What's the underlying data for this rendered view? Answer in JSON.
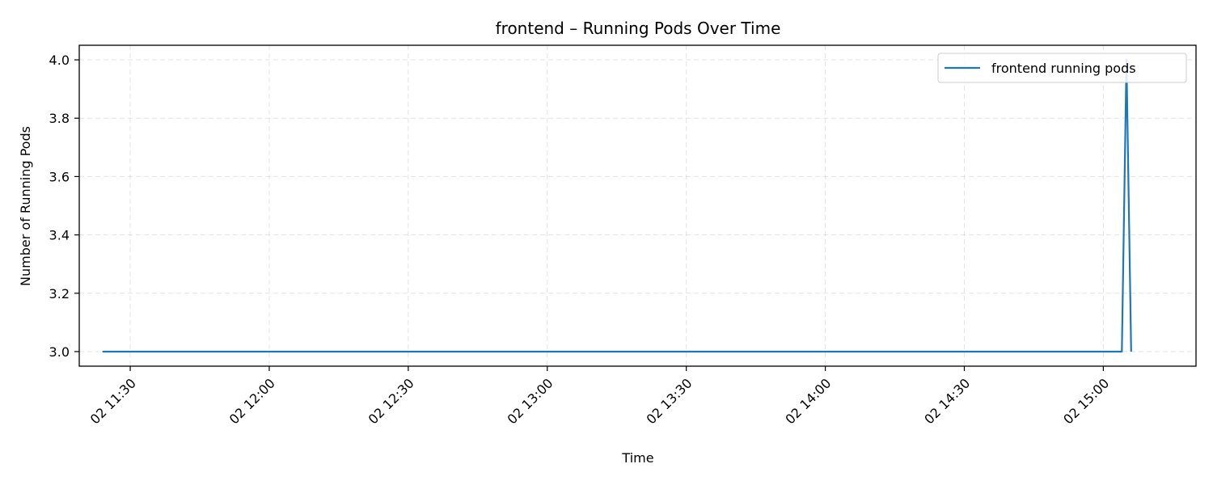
{
  "chart_data": {
    "type": "line",
    "title": "frontend – Running Pods Over Time",
    "xlabel": "Time",
    "ylabel": "Number of Running Pods",
    "grid": true,
    "legend_position": "top-right",
    "x_ticks": [
      {
        "time": "11:30",
        "label": "02 11:30"
      },
      {
        "time": "12:00",
        "label": "02 12:00"
      },
      {
        "time": "12:30",
        "label": "02 12:30"
      },
      {
        "time": "13:00",
        "label": "02 13:00"
      },
      {
        "time": "13:30",
        "label": "02 13:30"
      },
      {
        "time": "14:00",
        "label": "02 14:00"
      },
      {
        "time": "14:30",
        "label": "02 14:30"
      },
      {
        "time": "15:00",
        "label": "02 15:00"
      }
    ],
    "y_ticks": [
      3.0,
      3.2,
      3.4,
      3.6,
      3.8,
      4.0
    ],
    "y_tick_labels": [
      "3.0",
      "3.2",
      "3.4",
      "3.6",
      "3.8",
      "4.0"
    ],
    "xlim": [
      "11:19",
      "15:20"
    ],
    "ylim": [
      2.95,
      4.05
    ],
    "series": [
      {
        "name": "frontend running pods",
        "color": "#1f77b4",
        "points": [
          {
            "x": "11:24",
            "y": 3
          },
          {
            "x": "15:04",
            "y": 3
          },
          {
            "x": "15:05",
            "y": 4
          },
          {
            "x": "15:06",
            "y": 3
          }
        ]
      }
    ]
  }
}
